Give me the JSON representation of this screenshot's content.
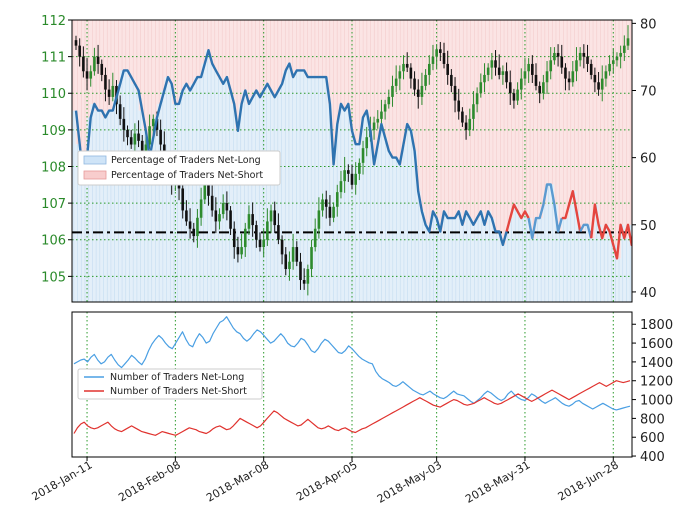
{
  "chart_data": [
    {
      "type": "candlestick-line",
      "price_axis": {
        "ticks": [
          105,
          106,
          107,
          108,
          109,
          110,
          111,
          112
        ],
        "range": [
          104.3,
          112.0
        ]
      },
      "pct_axis": {
        "ticks": [
          40,
          50,
          60,
          70,
          80
        ],
        "range": [
          38.5,
          80.5
        ]
      },
      "dates": [
        "2018-Jan-11",
        "2018-Feb-08",
        "2018-Mar-08",
        "2018-Apr-05",
        "2018-May-03",
        "2018-May-31",
        "2018-Jun-28"
      ],
      "reference_level": 106.2,
      "legend": [
        "Percentage of Traders Net-Long",
        "Percentage of Traders Net-Short"
      ],
      "net_long_pct": [
        67,
        62,
        57,
        60,
        66,
        68,
        67,
        67,
        66,
        67,
        67,
        69,
        71,
        73,
        73,
        72,
        71,
        70,
        67,
        64,
        60,
        63,
        66,
        68,
        70,
        72,
        71,
        68,
        68,
        70,
        71,
        70,
        71,
        72,
        72,
        74,
        76,
        74,
        73,
        72,
        71,
        72,
        70,
        68,
        64,
        68,
        70,
        68,
        69,
        70,
        69,
        70,
        71,
        70,
        69,
        70,
        71,
        73,
        74,
        72,
        73,
        73,
        73,
        72,
        72,
        72,
        72,
        72,
        72,
        68,
        59,
        65,
        68,
        67,
        68,
        64,
        62,
        62,
        66,
        67,
        64,
        59,
        62,
        65,
        63,
        61,
        60,
        60,
        59,
        62,
        65,
        64,
        61,
        55,
        52,
        50,
        49,
        52,
        51,
        49,
        52,
        51,
        51,
        51,
        52,
        50,
        52,
        51,
        50,
        51,
        52,
        50,
        52,
        51,
        49,
        49,
        47,
        49,
        51,
        53,
        52,
        51,
        52,
        51,
        48,
        51,
        51,
        53,
        56,
        56,
        53,
        49,
        51,
        51,
        53,
        55,
        52,
        49,
        50,
        50,
        48,
        53,
        50,
        48,
        50,
        49,
        47,
        45,
        50,
        48,
        50,
        47,
        49,
        49,
        50,
        48,
        46,
        45,
        44,
        46,
        44,
        47,
        47,
        44,
        43
      ],
      "net_long_pct_short_segments": [
        {
          "start": 117,
          "end": 122
        },
        {
          "start": 132,
          "end": 136
        },
        {
          "start": 140,
          "end": 164
        }
      ],
      "price_path": [
        111.3,
        111.0,
        110.6,
        110.4,
        110.6,
        111.0,
        110.8,
        110.5,
        110.1,
        109.9,
        110.2,
        109.7,
        109.3,
        109.0,
        108.8,
        108.6,
        108.9,
        108.7,
        108.3,
        108.6,
        109.1,
        109.3,
        109.0,
        108.6,
        108.1,
        107.7,
        107.5,
        107.8,
        107.4,
        106.8,
        106.5,
        106.3,
        106.1,
        106.6,
        107.1,
        107.5,
        107.2,
        106.8,
        106.5,
        106.7,
        107.0,
        106.8,
        106.3,
        105.8,
        105.6,
        105.8,
        106.3,
        106.7,
        106.4,
        106.0,
        105.8,
        106.0,
        106.5,
        106.8,
        106.4,
        106.0,
        105.6,
        105.2,
        105.4,
        105.8,
        105.4,
        104.9,
        104.8,
        105.2,
        105.8,
        106.3,
        106.8,
        107.1,
        106.9,
        106.6,
        106.9,
        107.3,
        107.6,
        107.9,
        107.8,
        107.5,
        107.8,
        108.1,
        108.5,
        108.8,
        109.0,
        109.2,
        109.3,
        109.5,
        109.7,
        109.9,
        110.2,
        110.4,
        110.6,
        110.8,
        110.7,
        110.4,
        110.1,
        109.9,
        110.2,
        110.5,
        110.8,
        111.0,
        111.2,
        111.1,
        110.8,
        110.5,
        110.2,
        109.8,
        109.5,
        109.2,
        109.0,
        109.3,
        109.7,
        110.0,
        110.3,
        110.5,
        110.7,
        110.9,
        110.7,
        110.5,
        110.6,
        110.3,
        110.0,
        109.8,
        110.1,
        110.4,
        110.6,
        110.8,
        110.5,
        110.2,
        110.0,
        110.3,
        110.6,
        110.9,
        111.1,
        111.0,
        110.7,
        110.4,
        110.3,
        110.6,
        110.9,
        111.1,
        111.0,
        110.8,
        110.5,
        110.3,
        110.1,
        110.4,
        110.6,
        110.8,
        110.9,
        111.0,
        111.1,
        111.3,
        111.5
      ]
    },
    {
      "type": "line",
      "y_axis": {
        "ticks": [
          400,
          600,
          800,
          1000,
          1200,
          1400,
          1600,
          1800
        ],
        "range": [
          390,
          1930
        ]
      },
      "series": [
        {
          "name": "Number of Traders Net-Long",
          "color": "#4a9fe3",
          "values": [
            1380,
            1400,
            1420,
            1430,
            1400,
            1450,
            1480,
            1420,
            1380,
            1400,
            1450,
            1480,
            1420,
            1370,
            1340,
            1380,
            1420,
            1470,
            1440,
            1400,
            1370,
            1430,
            1520,
            1590,
            1640,
            1680,
            1650,
            1600,
            1560,
            1540,
            1600,
            1660,
            1720,
            1640,
            1580,
            1560,
            1640,
            1700,
            1660,
            1600,
            1620,
            1700,
            1760,
            1820,
            1840,
            1880,
            1820,
            1760,
            1720,
            1700,
            1650,
            1620,
            1650,
            1700,
            1740,
            1720,
            1680,
            1640,
            1600,
            1620,
            1660,
            1700,
            1660,
            1600,
            1570,
            1560,
            1600,
            1650,
            1630,
            1580,
            1520,
            1500,
            1540,
            1600,
            1640,
            1620,
            1580,
            1540,
            1500,
            1490,
            1520,
            1570,
            1540,
            1500,
            1460,
            1430,
            1410,
            1390,
            1380,
            1300,
            1250,
            1220,
            1200,
            1180,
            1150,
            1140,
            1160,
            1190,
            1160,
            1130,
            1100,
            1080,
            1060,
            1050,
            1070,
            1090,
            1060,
            1040,
            1020,
            1010,
            1030,
            1060,
            1090,
            1060,
            1050,
            1040,
            1010,
            980,
            960,
            990,
            1020,
            1060,
            1090,
            1070,
            1040,
            1010,
            990,
            1010,
            1060,
            1090,
            1050,
            1020,
            1000,
            990,
            1020,
            1060,
            1040,
            1010,
            980,
            960,
            980,
            1000,
            1020,
            990,
            960,
            940,
            930,
            950,
            980,
            990,
            960,
            940,
            920,
            900,
            920,
            940,
            960,
            940,
            920,
            900,
            890,
            900,
            910,
            920,
            930
          ]
        },
        {
          "name": "Number of Traders Net-Short",
          "color": "#e0322e",
          "values": [
            640,
            700,
            740,
            760,
            720,
            700,
            690,
            700,
            720,
            740,
            760,
            720,
            690,
            670,
            660,
            680,
            700,
            720,
            700,
            680,
            660,
            650,
            640,
            630,
            620,
            640,
            660,
            650,
            640,
            630,
            620,
            640,
            660,
            680,
            700,
            690,
            680,
            660,
            650,
            640,
            660,
            690,
            710,
            720,
            700,
            680,
            690,
            720,
            760,
            800,
            780,
            760,
            740,
            720,
            700,
            720,
            760,
            800,
            840,
            880,
            860,
            830,
            800,
            780,
            760,
            740,
            720,
            730,
            760,
            790,
            760,
            730,
            700,
            690,
            700,
            720,
            700,
            680,
            670,
            690,
            700,
            680,
            660,
            650,
            670,
            690,
            700,
            720,
            740,
            760,
            780,
            800,
            820,
            840,
            860,
            880,
            900,
            920,
            940,
            960,
            980,
            1000,
            1020,
            1000,
            980,
            960,
            940,
            930,
            920,
            940,
            960,
            980,
            1000,
            990,
            970,
            950,
            940,
            950,
            960,
            980,
            1000,
            1020,
            1000,
            980,
            960,
            950,
            960,
            980,
            1000,
            1020,
            1040,
            1060,
            1040,
            1020,
            1000,
            980,
            1000,
            1020,
            1040,
            1060,
            1080,
            1100,
            1080,
            1060,
            1040,
            1020,
            1000,
            1020,
            1040,
            1060,
            1080,
            1100,
            1120,
            1140,
            1160,
            1180,
            1160,
            1140,
            1160,
            1180,
            1200,
            1190,
            1180,
            1190,
            1200
          ]
        }
      ]
    }
  ]
}
